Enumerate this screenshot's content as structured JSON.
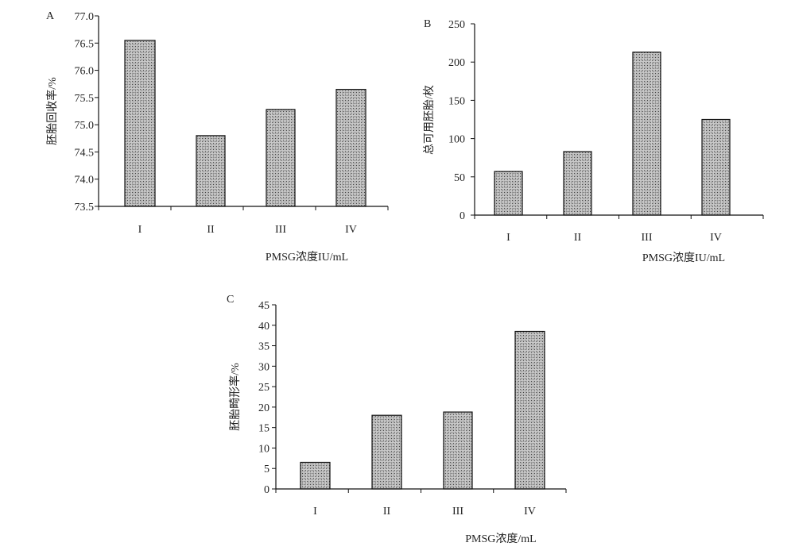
{
  "chart_data": [
    {
      "panel_label": "A",
      "type": "bar",
      "categories": [
        "I",
        "II",
        "III",
        "IV"
      ],
      "values": [
        76.55,
        74.8,
        75.28,
        75.65
      ],
      "ylabel": "胚胎回收率/%",
      "xlabel": "PMSG浓度IU/mL",
      "ylim": [
        73.5,
        77.0
      ],
      "yticks": [
        "73.5",
        "74.0",
        "74.5",
        "75.0",
        "75.5",
        "76.0",
        "76.5",
        "77.0"
      ],
      "grid": false,
      "legend": "none",
      "bar_pattern": "grey stipple"
    },
    {
      "panel_label": "B",
      "type": "bar",
      "categories": [
        "I",
        "II",
        "III",
        "IV"
      ],
      "values": [
        57,
        83,
        213,
        125
      ],
      "ylabel": "总可用胚胎/枚",
      "xlabel": "PMSG浓度IU/mL",
      "ylim": [
        0,
        250
      ],
      "yticks": [
        "0",
        "50",
        "100",
        "150",
        "200",
        "250"
      ],
      "grid": false,
      "legend": "none",
      "bar_pattern": "grey stipple"
    },
    {
      "panel_label": "C",
      "type": "bar",
      "categories": [
        "I",
        "II",
        "III",
        "IV"
      ],
      "values": [
        6.5,
        18,
        18.8,
        38.5
      ],
      "ylabel": "胚胎畸形率/%",
      "xlabel": "PMSG浓度/mL",
      "ylim": [
        0,
        45
      ],
      "yticks": [
        "0",
        "5",
        "10",
        "15",
        "20",
        "25",
        "30",
        "35",
        "40",
        "45"
      ],
      "grid": false,
      "legend": "none",
      "bar_pattern": "grey stipple"
    }
  ]
}
